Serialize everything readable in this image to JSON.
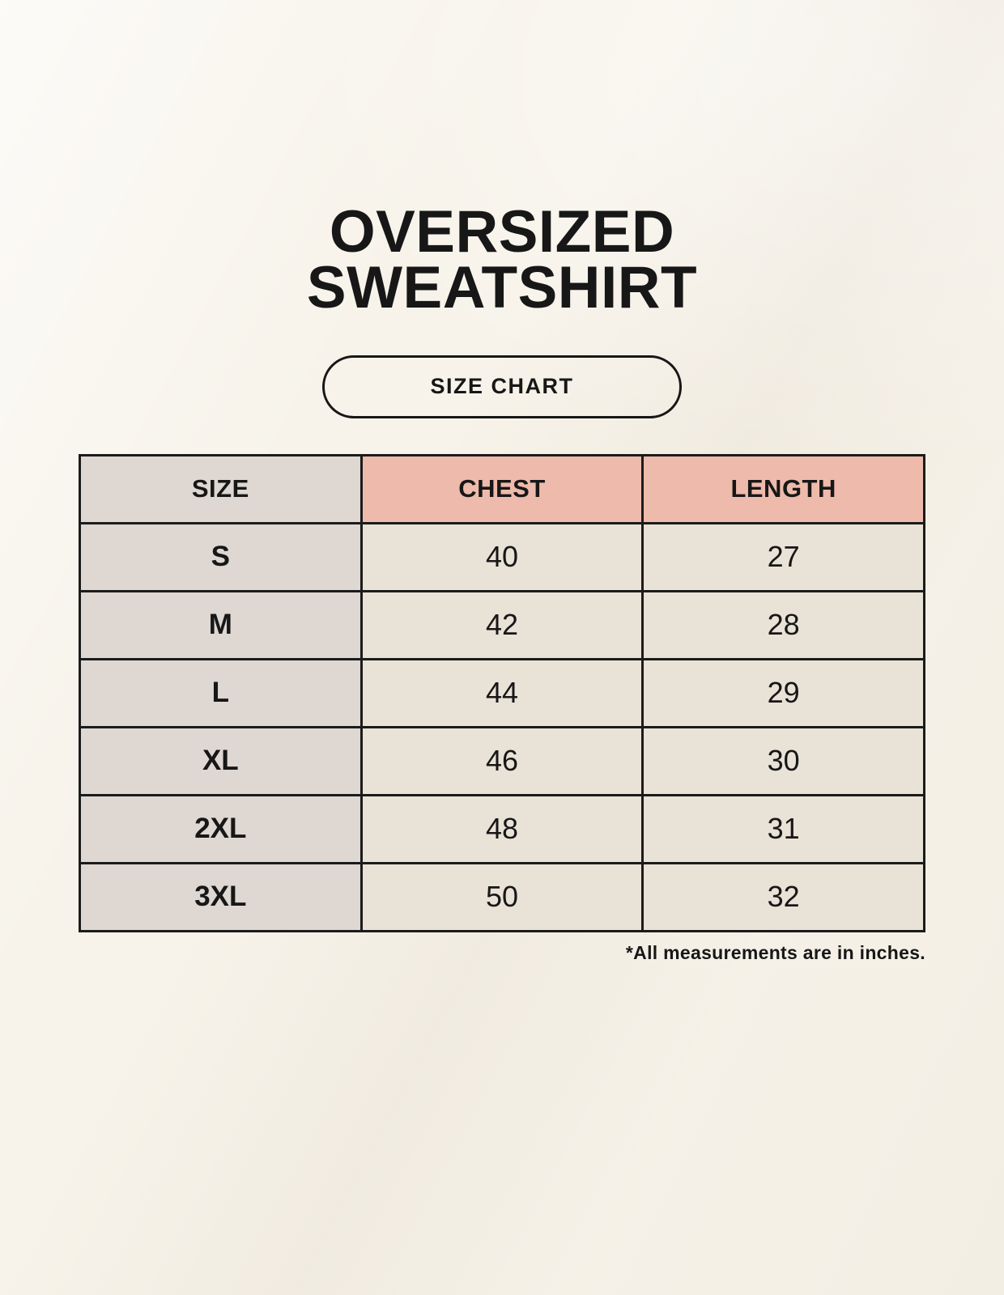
{
  "header": {
    "title_line1": "OVERSIZED",
    "title_line2": "SWEATSHIRT",
    "badge_label": "SIZE CHART"
  },
  "footer": {
    "note": "*All measurements are in inches."
  },
  "chart_data": {
    "type": "table",
    "title": "OVERSIZED SWEATSHIRT",
    "subtitle": "SIZE CHART",
    "columns": [
      "SIZE",
      "CHEST",
      "LENGTH"
    ],
    "rows": [
      {
        "size": "S",
        "chest": 40,
        "length": 27
      },
      {
        "size": "M",
        "chest": 42,
        "length": 28
      },
      {
        "size": "L",
        "chest": 44,
        "length": 29
      },
      {
        "size": "XL",
        "chest": 46,
        "length": 30
      },
      {
        "size": "2XL",
        "chest": 48,
        "length": 31
      },
      {
        "size": "3XL",
        "chest": 50,
        "length": 32
      }
    ],
    "units": "inches",
    "note": "*All measurements are in inches."
  },
  "colors": {
    "page_bg": "#f7f3ea",
    "size_col_bg": "#ded7d2",
    "accent_header_bg": "#eebaab",
    "value_cell_bg": "#e9e2d6",
    "table_border": "#1b1b1b",
    "ink": "#171717"
  }
}
